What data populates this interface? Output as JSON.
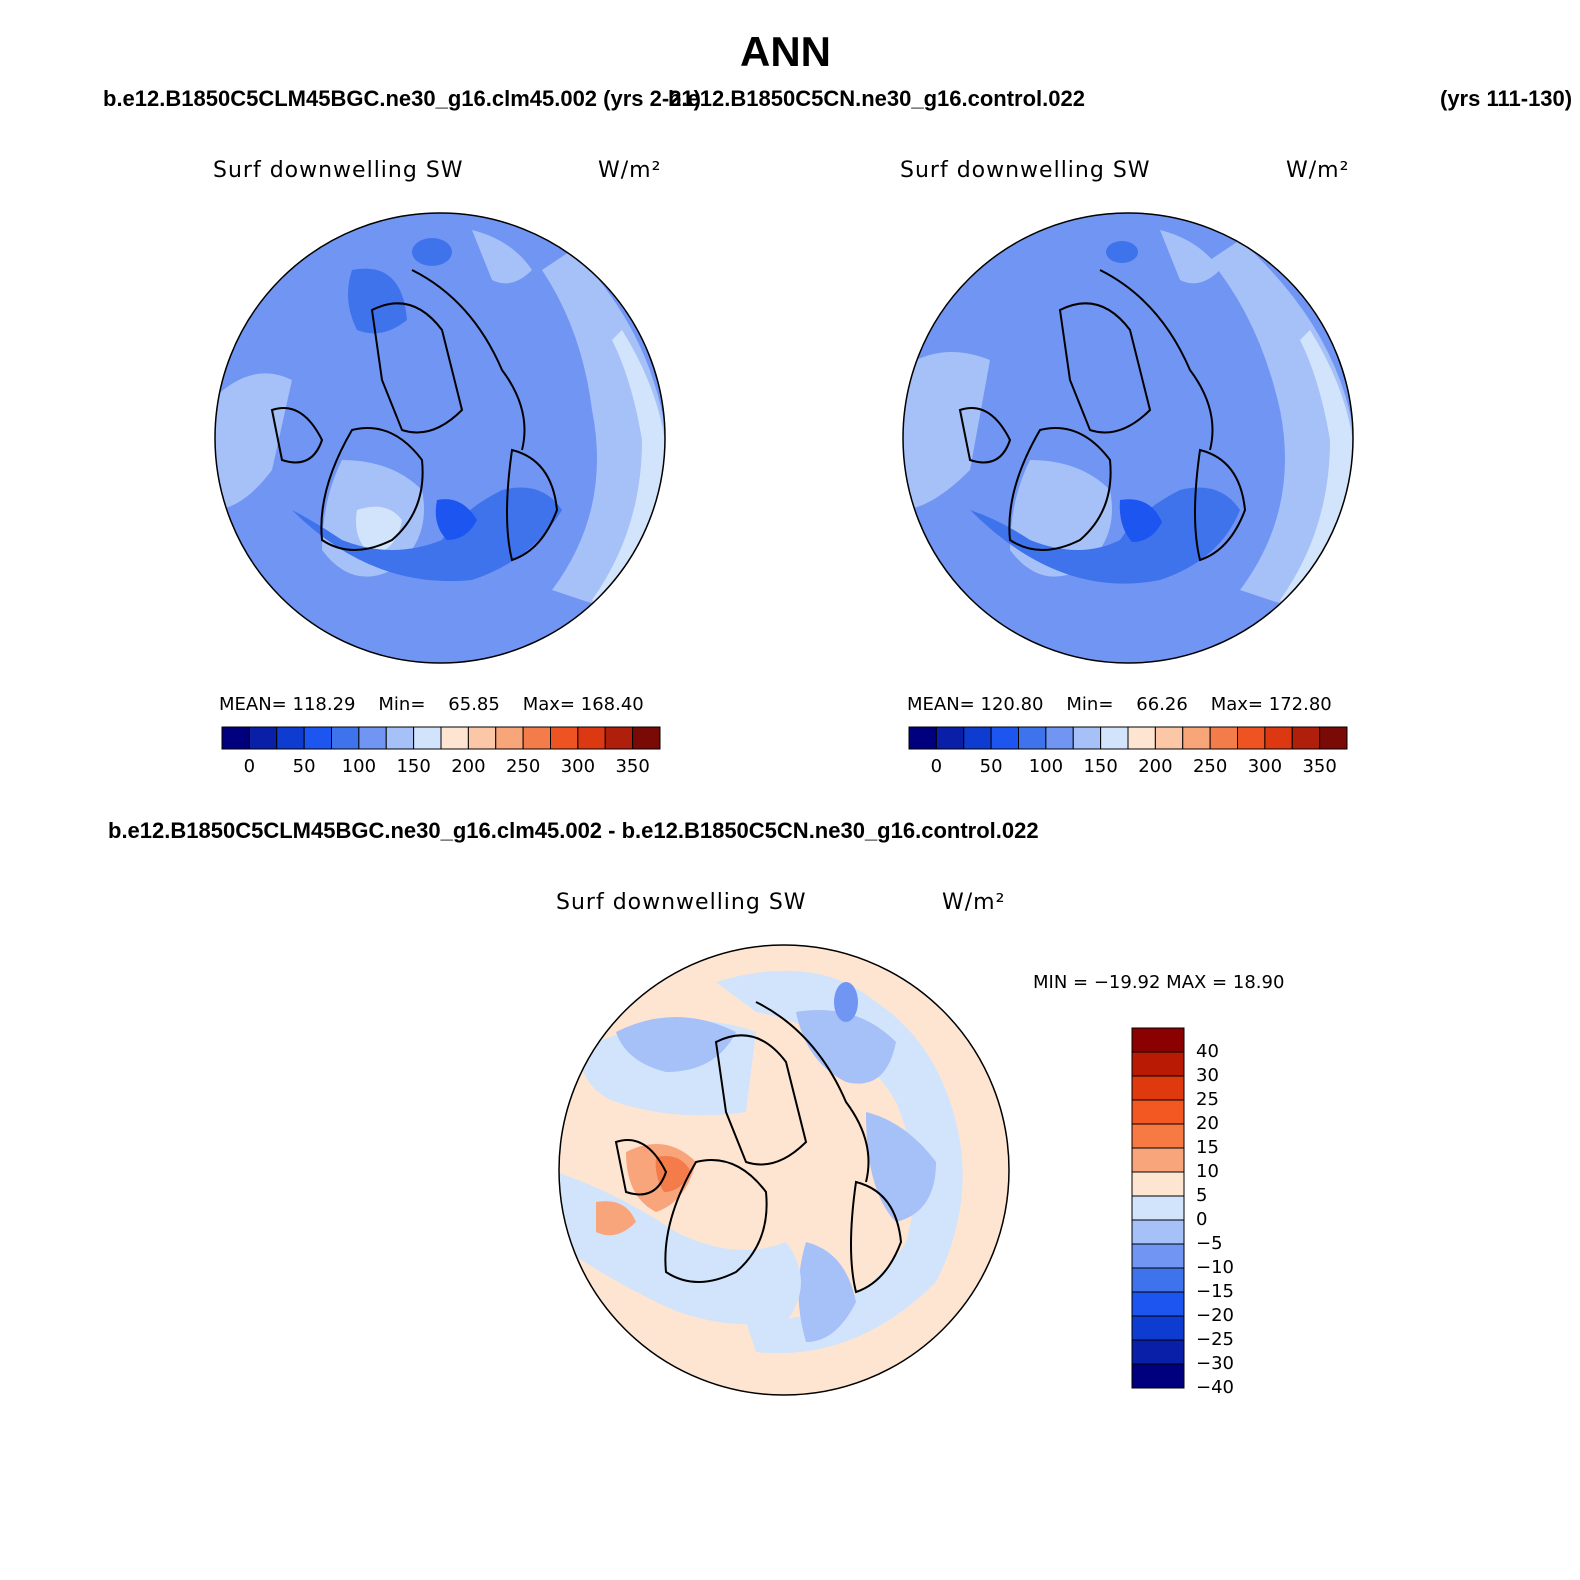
{
  "figure": {
    "season": "ANN",
    "case_a_title": "b.e12.B1850C5CLM45BGC.ne30_g16.clm45.002 (yrs 2-21)",
    "case_b_title": "b.e12.B1850C5CN.ne30_g16.control.022",
    "case_b_years": "(yrs 111-130)",
    "diff_title": "b.e12.B1850C5CLM45BGC.ne30_g16.clm45.002 - b.e12.B1850C5CN.ne30_g16.control.022"
  },
  "panels": [
    {
      "variable": "Surf downwelling SW",
      "units": "W/m²",
      "mean_label": "MEAN=",
      "mean_value": "118.29",
      "min_label": "Min=",
      "min_value": "65.85",
      "max_label": "Max=",
      "max_value": "168.40"
    },
    {
      "variable": "Surf downwelling SW",
      "units": "W/m²",
      "mean_label": "MEAN=",
      "mean_value": "120.80",
      "min_label": "Min=",
      "min_value": "66.26",
      "max_label": "Max=",
      "max_value": "172.80"
    }
  ],
  "diff_panel": {
    "variable": "Surf downwelling SW",
    "units": "W/m²",
    "minmax_text": "MIN = −19.92 MAX =   18.90"
  },
  "colorbar_abs": {
    "colors": [
      "#00007f",
      "#0a1fa8",
      "#0f3cd0",
      "#1d55f0",
      "#3f73ec",
      "#7195f2",
      "#a6c0f8",
      "#d2e4fb",
      "#fde5d2",
      "#fbc7a7",
      "#f9a57a",
      "#f47b4a",
      "#ee5422",
      "#dc3812",
      "#b01f0c",
      "#7a0a06"
    ],
    "tick_labels": [
      "0",
      "50",
      "100",
      "150",
      "200",
      "250",
      "300",
      "350"
    ]
  },
  "colorbar_diff": {
    "colors": [
      "#8b0000",
      "#b81a03",
      "#de3a0d",
      "#f35722",
      "#f77a45",
      "#f9a57c",
      "#fde5d2",
      "#d2e4fb",
      "#a6c0f8",
      "#7195f2",
      "#3f73ec",
      "#1d55f0",
      "#0f3cd0",
      "#0a1fa8",
      "#00007f"
    ],
    "tick_labels": [
      "40",
      "30",
      "25",
      "20",
      "15",
      "10",
      "5",
      "0",
      "−5",
      "−10",
      "−15",
      "−20",
      "−25",
      "−30",
      "−40"
    ]
  },
  "map_colors": {
    "bg_abs": "#7195f2",
    "bg_diff": "#fde5d2",
    "ocean_light": "#a6c0f8",
    "ocean_lighter": "#d2e4fb",
    "dark_blue": "#3f73ec",
    "darker_blue": "#1d55f0",
    "orange": "#f9a57c",
    "orange_dark": "#f47b4a"
  }
}
